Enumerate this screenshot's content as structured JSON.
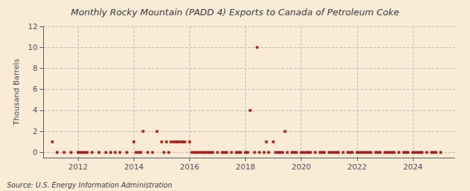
{
  "chart_data": {
    "type": "scatter",
    "title": "Monthly Rocky Mountain (PADD 4) Exports to Canada of Petroleum Coke",
    "ylabel": "Thousand Barrels",
    "annotations": [
      "Source: U.S. Energy Information Administration"
    ],
    "color": "#8b0000",
    "marker": "square",
    "grid": true,
    "xlim": [
      2010.75,
      2025.5
    ],
    "xticks": [
      2012,
      2014,
      2016,
      2018,
      2020,
      2022,
      2024
    ],
    "ylim": [
      -0.5,
      12
    ],
    "yticks": [
      0,
      2,
      4,
      6,
      8,
      10,
      12
    ],
    "x": [
      2011.08,
      2011.25,
      2011.5,
      2011.75,
      2012.0,
      2012.08,
      2012.17,
      2012.25,
      2012.33,
      2012.5,
      2012.75,
      2013.0,
      2013.17,
      2013.33,
      2013.5,
      2013.75,
      2014.0,
      2014.08,
      2014.17,
      2014.25,
      2014.33,
      2014.5,
      2014.67,
      2014.83,
      2015.0,
      2015.08,
      2015.17,
      2015.25,
      2015.33,
      2015.42,
      2015.5,
      2015.58,
      2015.67,
      2015.75,
      2015.83,
      2016.0,
      2016.08,
      2016.17,
      2016.25,
      2016.33,
      2016.42,
      2016.5,
      2016.58,
      2016.67,
      2016.75,
      2016.83,
      2017.0,
      2017.17,
      2017.25,
      2017.33,
      2017.5,
      2017.67,
      2017.75,
      2017.83,
      2018.0,
      2018.08,
      2018.17,
      2018.33,
      2018.42,
      2018.5,
      2018.67,
      2018.75,
      2018.83,
      2019.0,
      2019.08,
      2019.17,
      2019.25,
      2019.33,
      2019.42,
      2019.5,
      2019.67,
      2019.75,
      2019.83,
      2020.0,
      2020.08,
      2020.17,
      2020.25,
      2020.33,
      2020.5,
      2020.67,
      2020.75,
      2020.83,
      2021.0,
      2021.08,
      2021.17,
      2021.25,
      2021.33,
      2021.5,
      2021.67,
      2021.75,
      2021.83,
      2022.0,
      2022.08,
      2022.17,
      2022.25,
      2022.33,
      2022.42,
      2022.5,
      2022.67,
      2022.75,
      2022.83,
      2023.0,
      2023.08,
      2023.17,
      2023.25,
      2023.33,
      2023.5,
      2023.67,
      2023.75,
      2023.83,
      2024.0,
      2024.08,
      2024.17,
      2024.25,
      2024.33,
      2024.5,
      2024.67,
      2024.75,
      2024.83,
      2025.0
    ],
    "values": [
      1,
      0,
      0,
      0,
      0,
      0,
      0,
      0,
      0,
      0,
      0,
      0,
      0,
      0,
      0,
      0,
      1,
      0,
      0,
      0,
      2,
      0,
      0,
      2,
      1,
      0,
      1,
      0,
      1,
      1,
      1,
      1,
      1,
      1,
      1,
      1,
      0,
      0,
      0,
      0,
      0,
      0,
      0,
      0,
      0,
      0,
      0,
      0,
      0,
      0,
      0,
      0,
      0,
      0,
      0,
      0,
      4,
      0,
      10,
      0,
      0,
      1,
      0,
      1,
      0,
      0,
      0,
      0,
      2,
      0,
      0,
      0,
      0,
      0,
      0,
      0,
      0,
      0,
      0,
      0,
      0,
      0,
      0,
      0,
      0,
      0,
      0,
      0,
      0,
      0,
      0,
      0,
      0,
      0,
      0,
      0,
      0,
      0,
      0,
      0,
      0,
      0,
      0,
      0,
      0,
      0,
      0,
      0,
      0,
      0,
      0,
      0,
      0,
      0,
      0,
      0,
      0,
      0,
      0,
      0
    ]
  }
}
